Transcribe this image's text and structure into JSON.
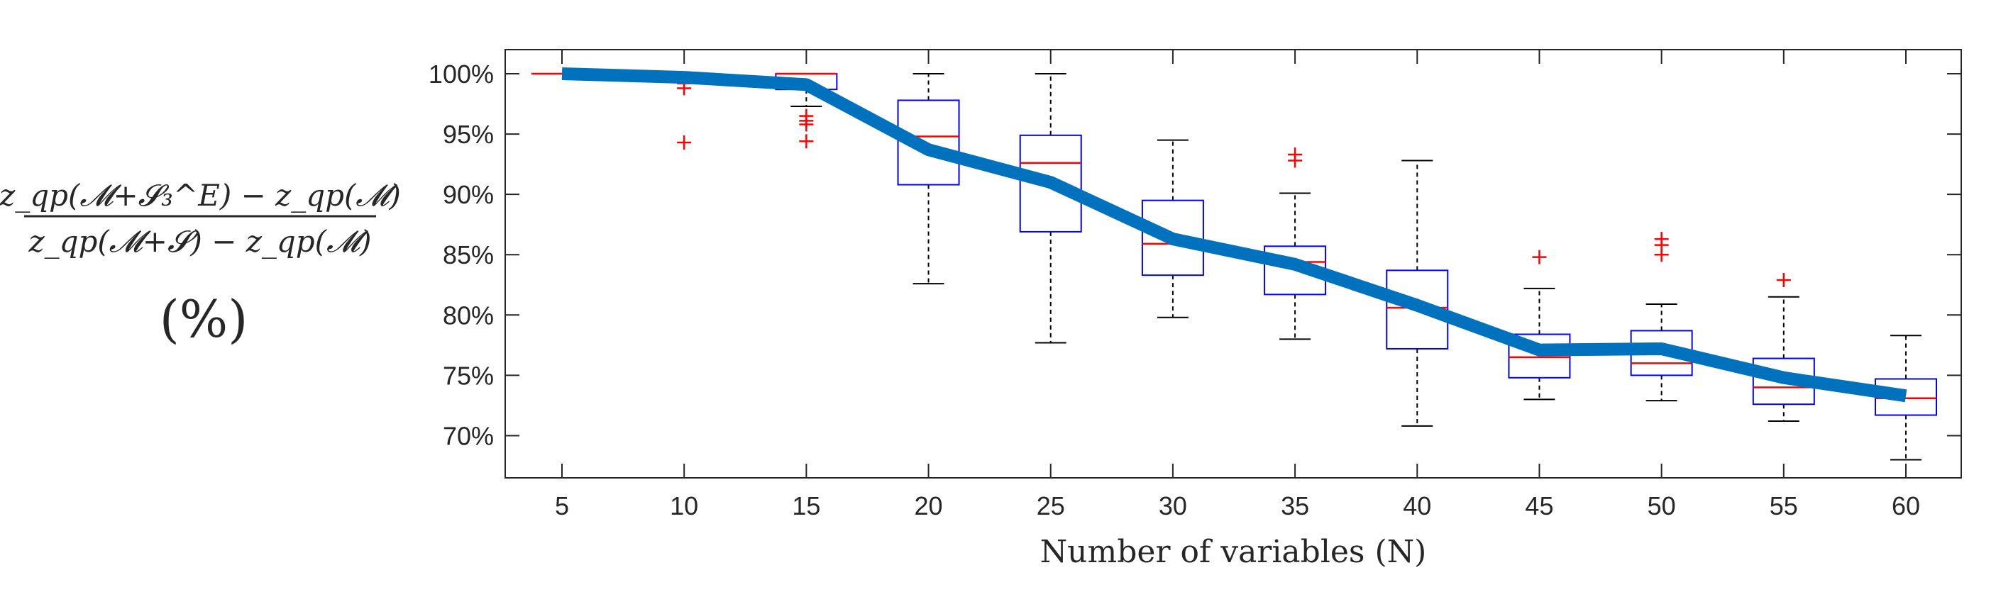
{
  "chart_data": {
    "type": "box",
    "xlabel": "Number of variables (N)",
    "ylabel_fraction": {
      "numerator": "z_qp(𝓜+𝓢₃^E) − z_qp(𝓜)",
      "denominator": "z_qp(𝓜+𝓢) − z_qp(𝓜)",
      "unit": "(%)"
    },
    "categories": [
      5,
      10,
      15,
      20,
      25,
      30,
      35,
      40,
      45,
      50,
      55,
      60
    ],
    "x_tick_labels": [
      "5",
      "10",
      "15",
      "20",
      "25",
      "30",
      "35",
      "40",
      "45",
      "50",
      "55",
      "60"
    ],
    "y_ticks": [
      70,
      75,
      80,
      85,
      90,
      95,
      100
    ],
    "y_tick_labels": [
      "70%",
      "75%",
      "80%",
      "85%",
      "90%",
      "95%",
      "100%"
    ],
    "ylim": [
      66.5,
      102
    ],
    "grid": false,
    "boxes": [
      {
        "x": 5,
        "q1": 100,
        "median": 100,
        "q3": 100,
        "whisker_low": 100,
        "whisker_high": 100,
        "outliers": []
      },
      {
        "x": 10,
        "q1": 100,
        "median": 100,
        "q3": 100,
        "whisker_low": 100,
        "whisker_high": 100,
        "outliers": [
          99.2,
          98.8,
          94.3
        ]
      },
      {
        "x": 15,
        "q1": 98.7,
        "median": 100,
        "q3": 100,
        "whisker_low": 97.3,
        "whisker_high": 100,
        "outliers": [
          96.5,
          96.1,
          95.8,
          94.4
        ]
      },
      {
        "x": 20,
        "q1": 90.8,
        "median": 94.8,
        "q3": 97.8,
        "whisker_low": 82.6,
        "whisker_high": 100,
        "outliers": []
      },
      {
        "x": 25,
        "q1": 86.9,
        "median": 92.6,
        "q3": 94.9,
        "whisker_low": 77.7,
        "whisker_high": 100,
        "outliers": []
      },
      {
        "x": 30,
        "q1": 83.3,
        "median": 85.9,
        "q3": 89.5,
        "whisker_low": 79.8,
        "whisker_high": 94.5,
        "outliers": []
      },
      {
        "x": 35,
        "q1": 81.7,
        "median": 84.4,
        "q3": 85.7,
        "whisker_low": 78.0,
        "whisker_high": 90.1,
        "outliers": [
          93.3,
          92.8
        ]
      },
      {
        "x": 40,
        "q1": 77.2,
        "median": 80.6,
        "q3": 83.7,
        "whisker_low": 70.8,
        "whisker_high": 92.8,
        "outliers": []
      },
      {
        "x": 45,
        "q1": 74.8,
        "median": 76.5,
        "q3": 78.4,
        "whisker_low": 73.0,
        "whisker_high": 82.2,
        "outliers": [
          84.8
        ]
      },
      {
        "x": 50,
        "q1": 75.0,
        "median": 76.0,
        "q3": 78.7,
        "whisker_low": 72.9,
        "whisker_high": 80.9,
        "outliers": [
          86.3,
          85.8,
          85.0
        ]
      },
      {
        "x": 55,
        "q1": 72.6,
        "median": 74.0,
        "q3": 76.4,
        "whisker_low": 71.2,
        "whisker_high": 81.5,
        "outliers": [
          82.9
        ]
      },
      {
        "x": 60,
        "q1": 71.7,
        "median": 73.1,
        "q3": 74.7,
        "whisker_low": 68.0,
        "whisker_high": 78.3,
        "outliers": []
      }
    ],
    "mean_line": {
      "x": [
        5,
        10,
        15,
        20,
        25,
        30,
        35,
        40,
        45,
        50,
        55,
        60
      ],
      "y": [
        100,
        99.7,
        99.1,
        93.7,
        91.0,
        86.3,
        84.2,
        80.8,
        77.1,
        77.2,
        74.8,
        73.3
      ]
    },
    "colors": {
      "box": "#0000ff",
      "median": "#ff0000",
      "outlier": "#ff0000",
      "whisker": "#000000",
      "mean_line": "#0072bd",
      "axes": "#262626"
    }
  }
}
